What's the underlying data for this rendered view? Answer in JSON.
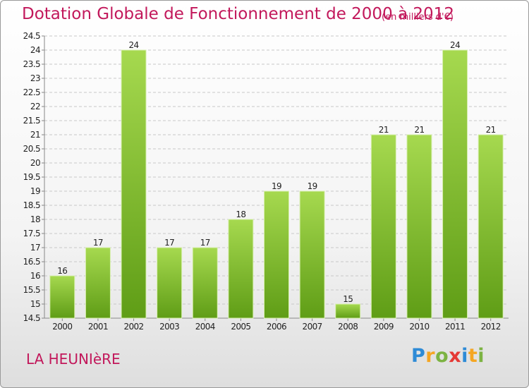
{
  "title": "Dotation Globale de Fonctionnement de 2000 à 2012",
  "subtitle": "(en milliers d'€)",
  "commune": "LA HEUNIèRE",
  "logo": {
    "text": "Proxiti",
    "letters": [
      {
        "ch": "P",
        "color": "#2e8bd6"
      },
      {
        "ch": "r",
        "color": "#f5a623"
      },
      {
        "ch": "o",
        "color": "#7cb342"
      },
      {
        "ch": "x",
        "color": "#e53935"
      },
      {
        "ch": "i",
        "color": "#2e8bd6"
      },
      {
        "ch": "t",
        "color": "#f5a623"
      },
      {
        "ch": "i",
        "color": "#7cb342"
      }
    ]
  },
  "colors": {
    "accent": "#c2185b",
    "bar_light": "#a6d94f",
    "bar_dark": "#5f9d16",
    "grid": "#c8c8c8",
    "axis_text": "#222222"
  },
  "chart_data": {
    "type": "bar",
    "categories": [
      "2000",
      "2001",
      "2002",
      "2003",
      "2004",
      "2005",
      "2006",
      "2007",
      "2008",
      "2009",
      "2010",
      "2011",
      "2012"
    ],
    "values": [
      16,
      17,
      24,
      17,
      17,
      18,
      19,
      19,
      15,
      21,
      21,
      24,
      21
    ],
    "data_labels": [
      "16",
      "17",
      "24",
      "17",
      "17",
      "18",
      "19",
      "19",
      "15",
      "21",
      "21",
      "24",
      "21"
    ],
    "ylim": [
      14.5,
      24.5
    ],
    "yticks": [
      "14.5",
      "15",
      "15.5",
      "16",
      "16.5",
      "17",
      "17.5",
      "18",
      "18.5",
      "19",
      "19.5",
      "20",
      "20.5",
      "21",
      "21.5",
      "22",
      "22.5",
      "23",
      "23.5",
      "24",
      "24.5"
    ],
    "grid": true,
    "legend": "none"
  }
}
